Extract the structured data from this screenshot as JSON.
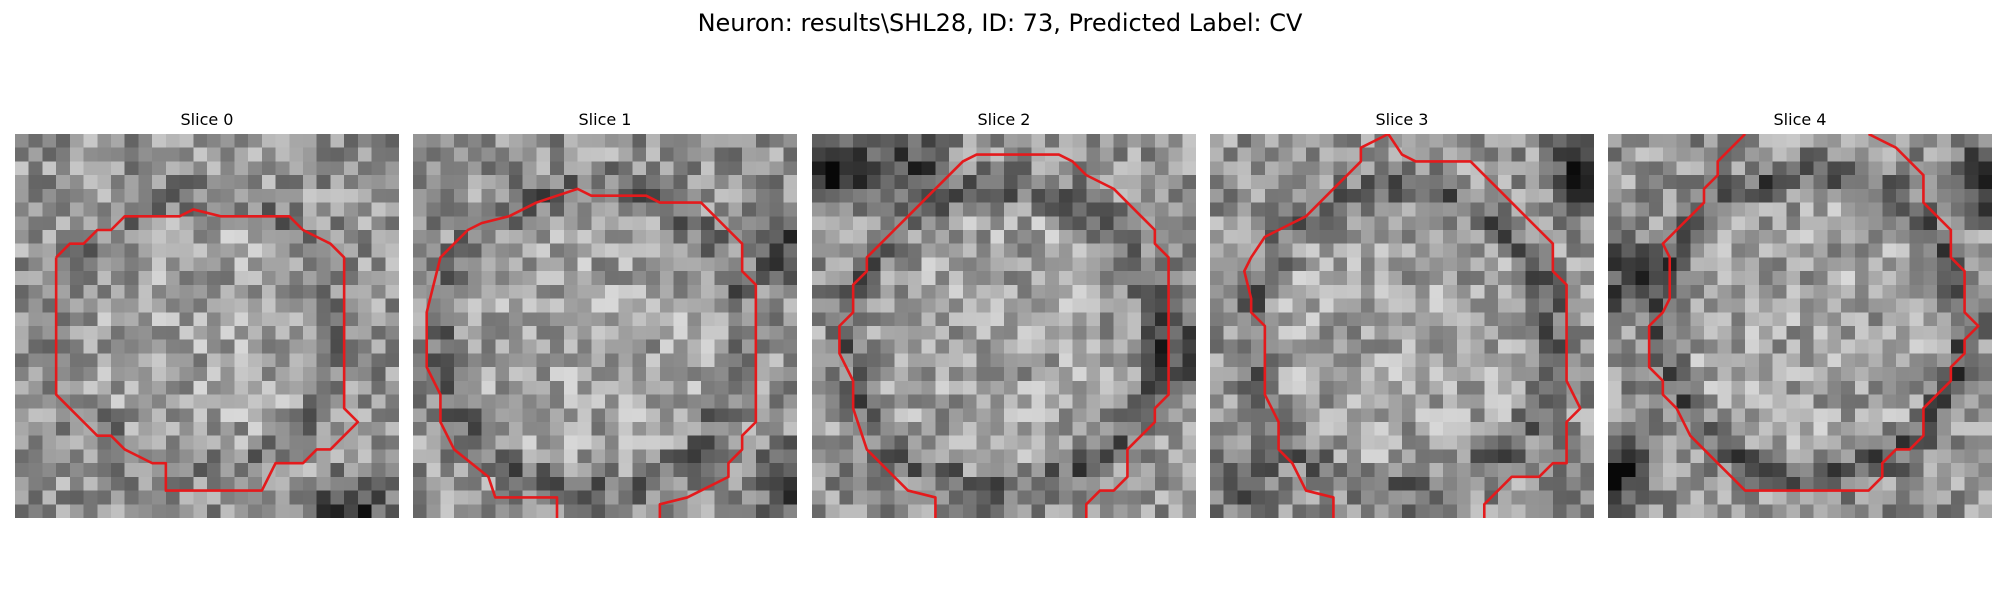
{
  "figure": {
    "title": "Neuron: results\\SHL28, ID: 73, Predicted Label: CV"
  },
  "contour_color": "#e41a1c",
  "grid_size": 28,
  "slices": [
    {
      "title": "Slice 0"
    },
    {
      "title": "Slice 1"
    },
    {
      "title": "Slice 2"
    },
    {
      "title": "Slice 3"
    },
    {
      "title": "Slice 4"
    }
  ]
}
